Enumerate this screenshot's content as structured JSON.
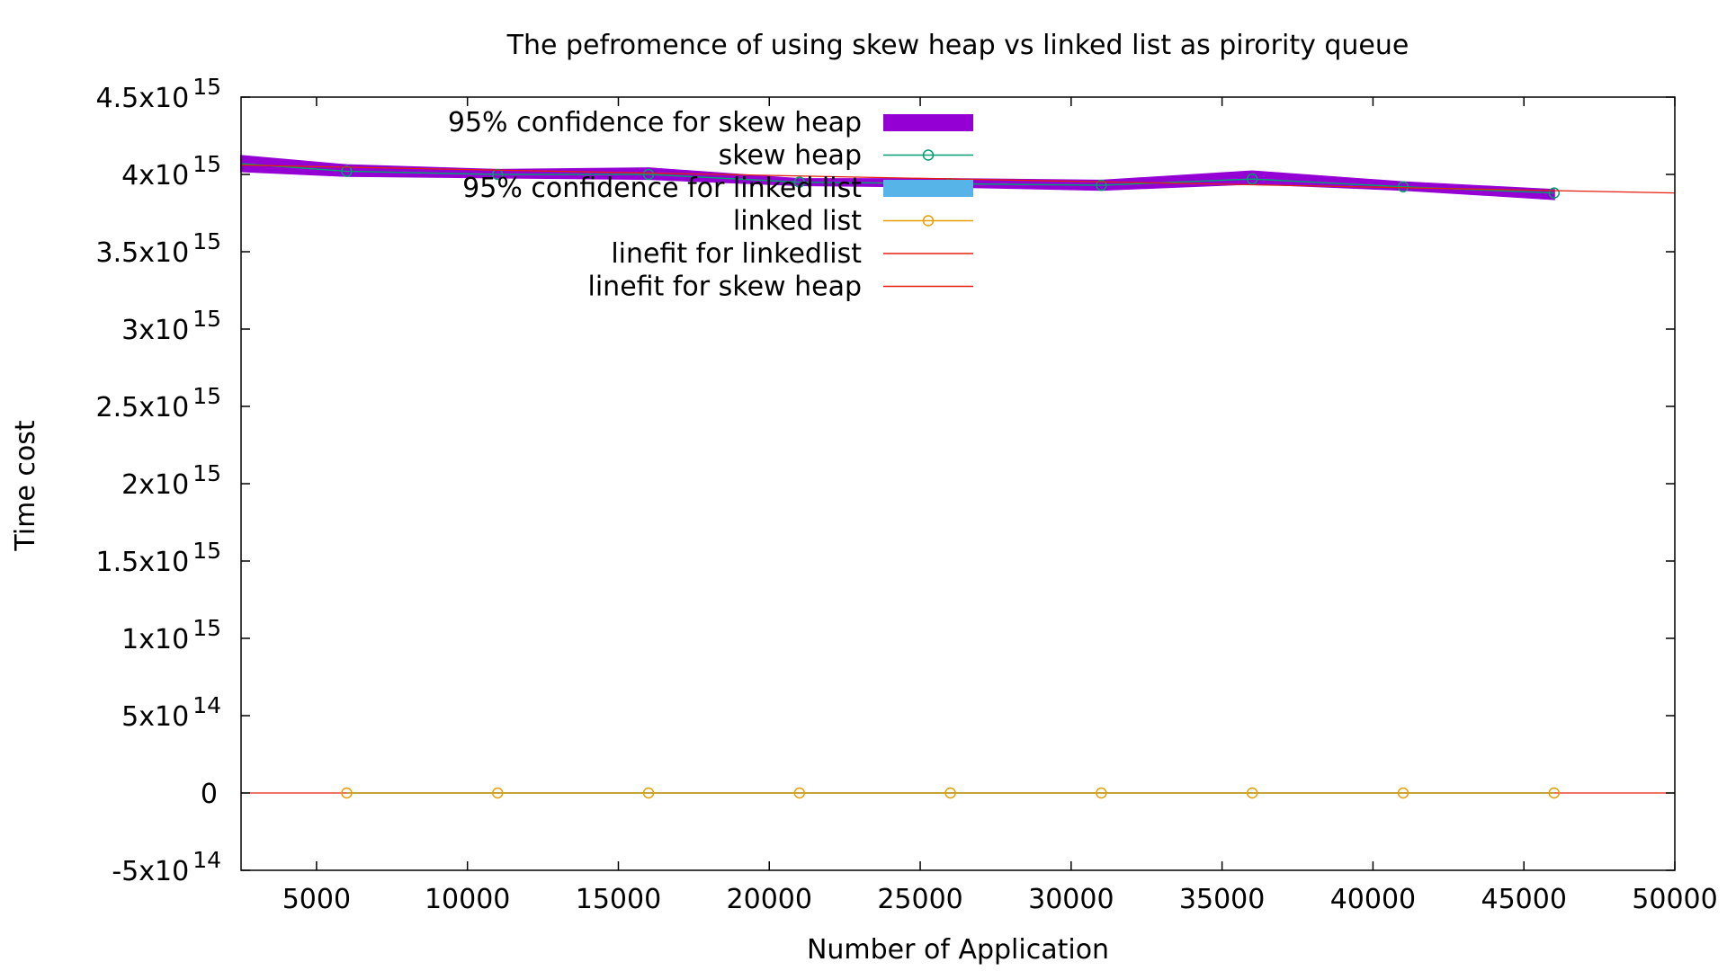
{
  "chart_data": {
    "type": "line",
    "title": "The pefromence of using skew heap vs linked list as pirority queue",
    "xlabel": "Number of Application",
    "ylabel": "Time cost",
    "xlim": [
      2500,
      50000
    ],
    "ylim": [
      -500000000000000.0,
      4500000000000000.0
    ],
    "x_ticks": [
      5000,
      10000,
      15000,
      20000,
      25000,
      30000,
      35000,
      40000,
      45000,
      50000
    ],
    "y_ticks": [
      {
        "value": 4500000000000000.0,
        "mant": "4.5x10",
        "exp": "15"
      },
      {
        "value": 4000000000000000.0,
        "mant": "4x10",
        "exp": "15"
      },
      {
        "value": 3500000000000000.0,
        "mant": "3.5x10",
        "exp": "15"
      },
      {
        "value": 3000000000000000.0,
        "mant": "3x10",
        "exp": "15"
      },
      {
        "value": 2500000000000000.0,
        "mant": "2.5x10",
        "exp": "15"
      },
      {
        "value": 2000000000000000.0,
        "mant": "2x10",
        "exp": "15"
      },
      {
        "value": 1500000000000000.0,
        "mant": "1.5x10",
        "exp": "15"
      },
      {
        "value": 1000000000000000.0,
        "mant": "1x10",
        "exp": "15"
      },
      {
        "value": 500000000000000.0,
        "mant": "5x10",
        "exp": "14"
      },
      {
        "value": 0,
        "mant": "0",
        "exp": ""
      },
      {
        "value": -500000000000000.0,
        "mant": "-5x10",
        "exp": "14"
      }
    ],
    "grid": false,
    "legend_position": "top-center",
    "series": [
      {
        "name": "95% confidence for skew heap",
        "kind": "band",
        "color": "#9400d3",
        "x": [
          2500,
          6000,
          11000,
          16000,
          21000,
          26000,
          31000,
          36000,
          41000,
          46000
        ],
        "lower": [
          4020000000000000.0,
          3990000000000000.0,
          3980000000000000.0,
          3970000000000000.0,
          3930000000000000.0,
          3920000000000000.0,
          3900000000000000.0,
          3940000000000000.0,
          3900000000000000.0,
          3840000000000000.0
        ],
        "upper": [
          4120000000000000.0,
          4060000000000000.0,
          4030000000000000.0,
          4040000000000000.0,
          3970000000000000.0,
          3970000000000000.0,
          3960000000000000.0,
          4020000000000000.0,
          3950000000000000.0,
          3900000000000000.0
        ]
      },
      {
        "name": "skew heap",
        "kind": "line-points",
        "color": "#009e73",
        "x": [
          2500,
          6000,
          11000,
          16000,
          21000,
          26000,
          31000,
          36000,
          41000,
          46000
        ],
        "values": [
          4070000000000000.0,
          4020000000000000.0,
          4000000000000000.0,
          4000000000000000.0,
          3950000000000000.0,
          3940000000000000.0,
          3930000000000000.0,
          3970000000000000.0,
          3920000000000000.0,
          3880000000000000.0
        ]
      },
      {
        "name": "95% confidence for linked list",
        "kind": "band",
        "color": "#56b4e9",
        "x": [
          6000,
          11000,
          16000,
          21000,
          26000,
          31000,
          36000,
          41000,
          46000
        ],
        "lower": [
          0,
          0,
          0,
          0,
          0,
          0,
          0,
          0,
          0
        ],
        "upper": [
          0,
          0,
          0,
          0,
          0,
          0,
          0,
          0,
          0
        ]
      },
      {
        "name": "linked list",
        "kind": "line-points",
        "color": "#e69f00",
        "x": [
          6000,
          11000,
          16000,
          21000,
          26000,
          31000,
          36000,
          41000,
          46000
        ],
        "values": [
          0,
          0,
          0,
          0,
          0,
          0,
          0,
          0,
          0
        ]
      },
      {
        "name": "linefit for linkedlist",
        "kind": "fit",
        "color": "#e51e10",
        "x": [
          2500,
          50000
        ],
        "values": [
          0,
          0
        ]
      },
      {
        "name": "linefit for skew heap",
        "kind": "fit",
        "color": "#e51e10",
        "x": [
          2500,
          50000
        ],
        "values": [
          4060000000000000.0,
          3880000000000000.0
        ]
      }
    ]
  }
}
